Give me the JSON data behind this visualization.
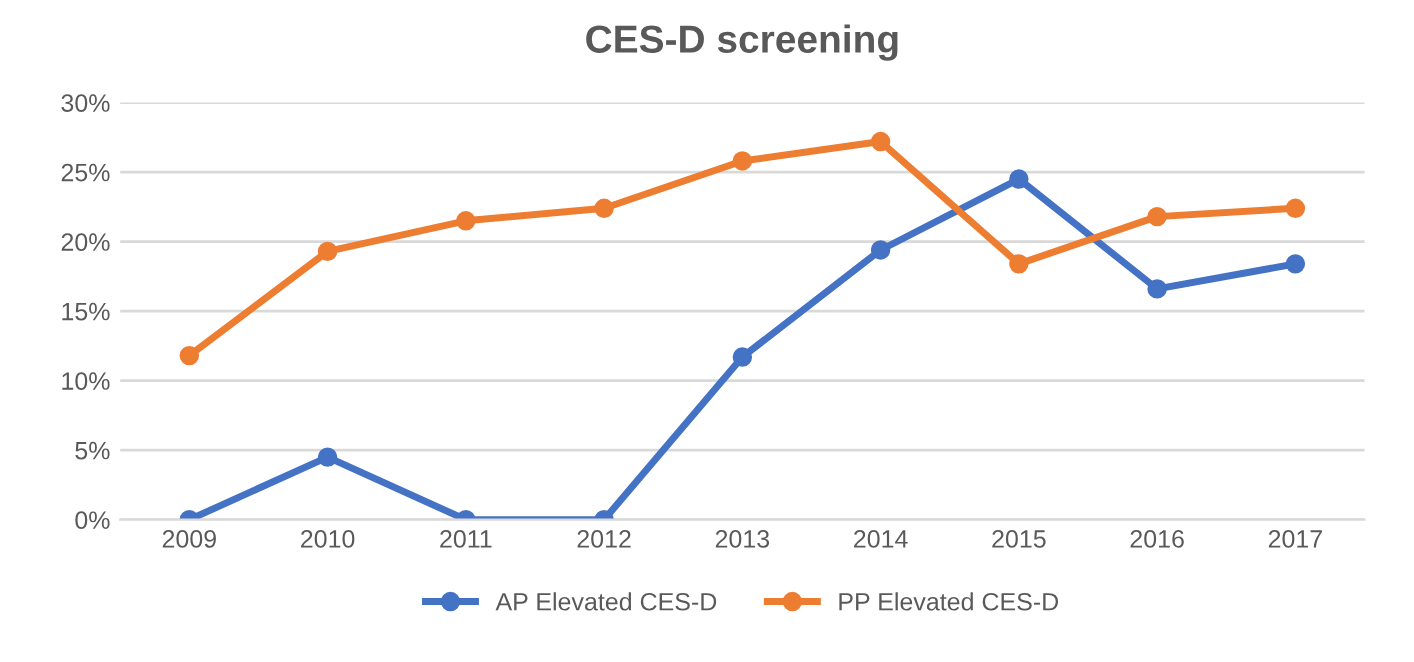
{
  "chart_data": {
    "type": "line",
    "title": "CES-D screening",
    "categories": [
      "2009",
      "2010",
      "2011",
      "2012",
      "2013",
      "2014",
      "2015",
      "2016",
      "2017"
    ],
    "series": [
      {
        "name": "AP Elevated CES-D",
        "color": "#4472c4",
        "values": [
          0,
          4.5,
          0,
          0,
          11.7,
          19.4,
          24.5,
          16.6,
          18.4
        ]
      },
      {
        "name": "PP Elevated CES-D",
        "color": "#ed7d31",
        "values": [
          11.8,
          19.3,
          21.5,
          22.4,
          25.8,
          27.2,
          18.4,
          21.8,
          22.4
        ]
      }
    ],
    "ylim": [
      0,
      30
    ],
    "yticks": [
      {
        "value": 0,
        "label": "0%"
      },
      {
        "value": 5,
        "label": "5%"
      },
      {
        "value": 10,
        "label": "10%"
      },
      {
        "value": 15,
        "label": "15%"
      },
      {
        "value": 20,
        "label": "20%"
      },
      {
        "value": 25,
        "label": "25%"
      },
      {
        "value": 30,
        "label": "30%"
      }
    ],
    "grid": "y",
    "legend": "bottom",
    "marker": "circle",
    "line_style": "solid"
  }
}
